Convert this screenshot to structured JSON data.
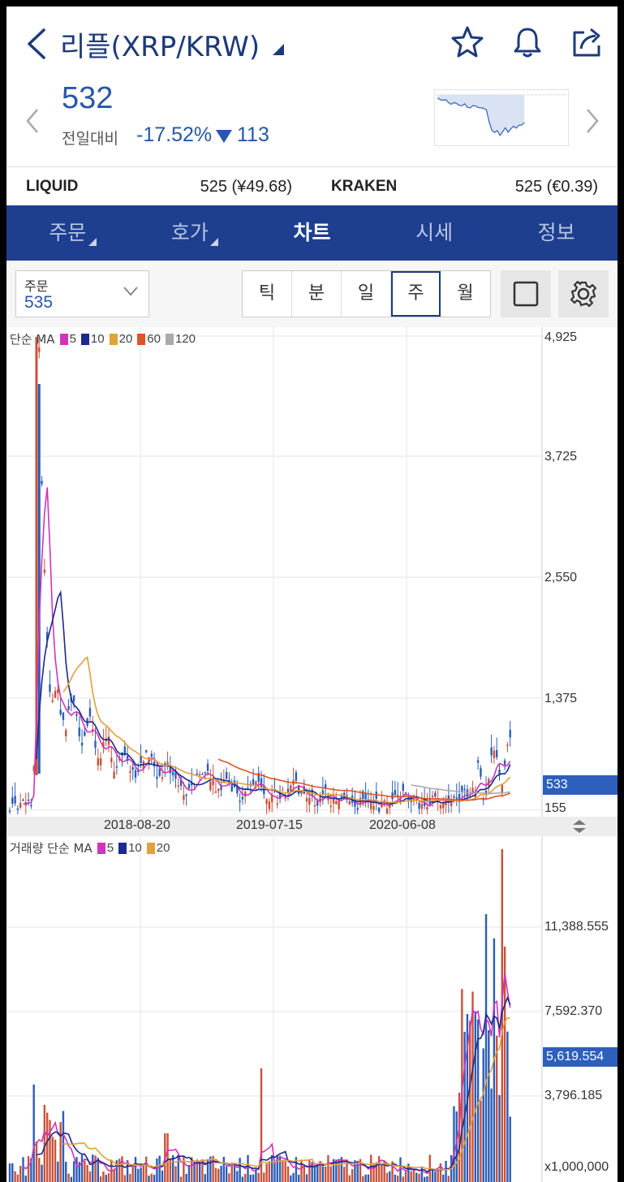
{
  "header": {
    "title": "리플(XRP/KRW)",
    "back_icon": "back-chevron-icon",
    "icons": [
      "star-icon",
      "bell-icon",
      "share-icon"
    ]
  },
  "price": {
    "current": "532",
    "change_label": "전일대비",
    "change_pct": "-17.52%",
    "change_value": "113",
    "color": "#2757a8"
  },
  "exchanges": [
    {
      "name": "LIQUID",
      "value": "525 (¥49.68)"
    },
    {
      "name": "KRAKEN",
      "value": "525 (€0.39)"
    }
  ],
  "tabs": [
    {
      "label": "주문",
      "active": false
    },
    {
      "label": "호가",
      "active": false
    },
    {
      "label": "차트",
      "active": true
    },
    {
      "label": "시세",
      "active": false
    },
    {
      "label": "정보",
      "active": false
    }
  ],
  "toolbar": {
    "order_label": "주문",
    "order_value": "535",
    "intervals": [
      "틱",
      "분",
      "일",
      "주",
      "월"
    ],
    "selected_interval": "주"
  },
  "chart_data": [
    {
      "type": "line",
      "legend_label": "단순 MA",
      "ma": [
        {
          "name": "5",
          "color": "#d234b8"
        },
        {
          "name": "10",
          "color": "#1b2a8c"
        },
        {
          "name": "20",
          "color": "#e0a23a"
        },
        {
          "name": "60",
          "color": "#d9552c"
        },
        {
          "name": "120",
          "color": "#aaaaaa"
        }
      ],
      "y_ticks": [
        "4,925",
        "3,725",
        "2,550",
        "1,375",
        "155"
      ],
      "ylim": [
        155,
        4925
      ],
      "current_value": "533",
      "x_labels": [
        "2018-08-20",
        "2019-07-15",
        "2020-06-08"
      ],
      "grid": true
    },
    {
      "type": "bar",
      "legend_label": "거래량 단순 MA",
      "ma": [
        {
          "name": "5",
          "color": "#d234b8"
        },
        {
          "name": "10",
          "color": "#1b2a8c"
        },
        {
          "name": "20",
          "color": "#e0a23a"
        }
      ],
      "y_ticks": [
        "11,388.555",
        "7,592.370",
        "3,796.185",
        "x1,000,000"
      ],
      "current_value": "5,619.554",
      "grid": true
    }
  ]
}
